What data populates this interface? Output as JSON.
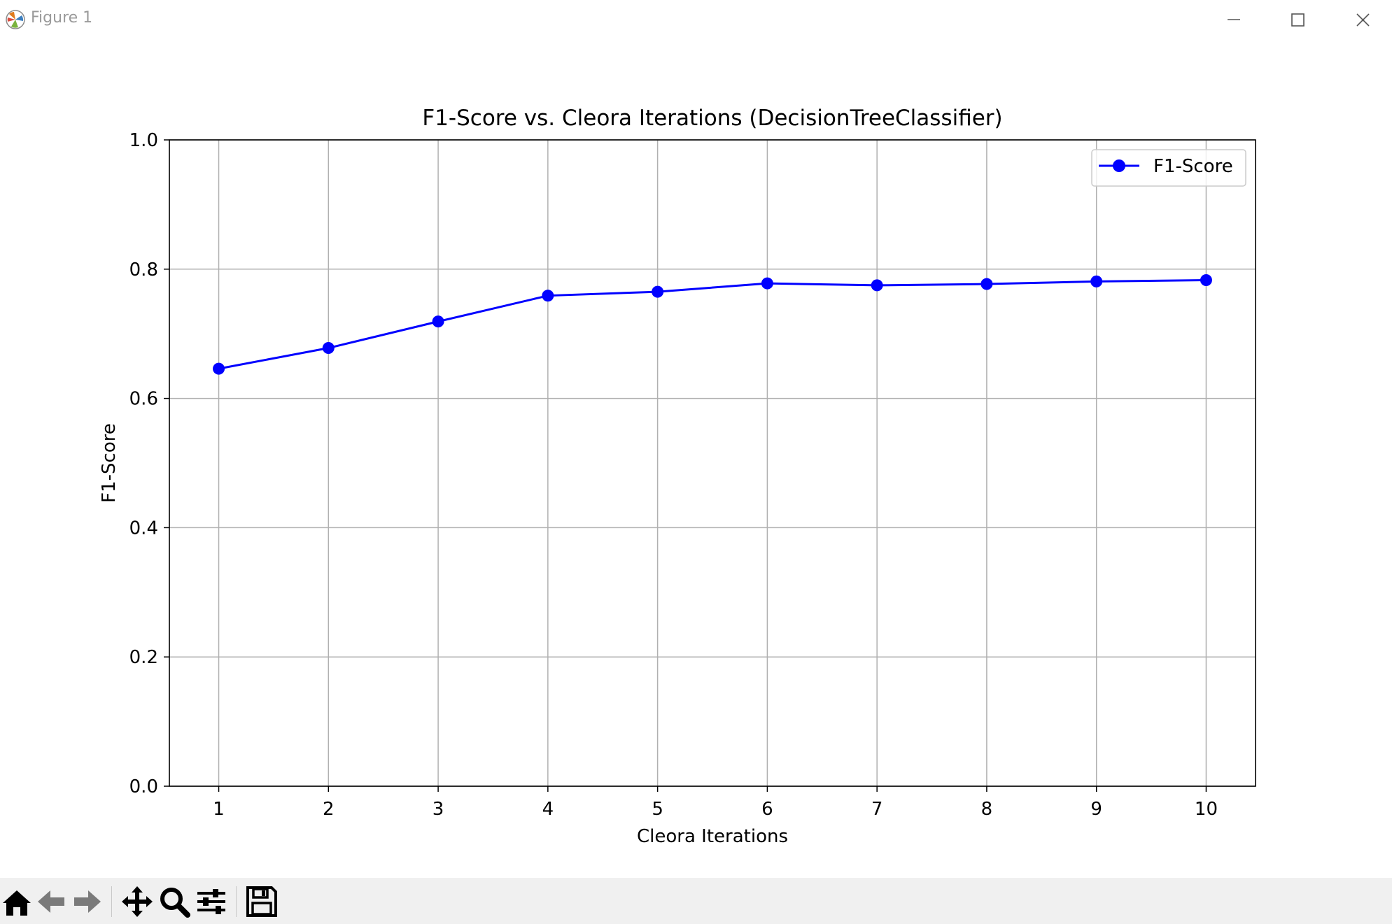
{
  "window": {
    "title": "Figure 1",
    "icons": [
      "matplotlib-logo-icon",
      "minimize-icon",
      "maximize-icon",
      "close-icon"
    ]
  },
  "toolbar": {
    "icons": [
      "home-icon",
      "back-arrow-icon",
      "forward-arrow-icon",
      "pan-move-icon",
      "zoom-magnifier-icon",
      "configure-subplots-icon",
      "save-floppy-icon"
    ]
  },
  "chart_data": {
    "type": "line",
    "title": "F1-Score vs. Cleora Iterations (DecisionTreeClassifier)",
    "xlabel": "Cleora Iterations",
    "ylabel": "F1-Score",
    "x": [
      1,
      2,
      3,
      4,
      5,
      6,
      7,
      8,
      9,
      10
    ],
    "xticks": [
      "1",
      "2",
      "3",
      "4",
      "5",
      "6",
      "7",
      "8",
      "9",
      "10"
    ],
    "yticks": [
      "0.0",
      "0.2",
      "0.4",
      "0.6",
      "0.8",
      "1.0"
    ],
    "ylim": [
      0,
      1
    ],
    "xlim": [
      0.55,
      10.45
    ],
    "grid": true,
    "legend_position": "top-right",
    "series": [
      {
        "name": "F1-Score",
        "color": "#0000ff",
        "marker": "circle",
        "values": [
          0.646,
          0.678,
          0.719,
          0.759,
          0.765,
          0.778,
          0.775,
          0.777,
          0.781,
          0.783
        ]
      }
    ]
  }
}
